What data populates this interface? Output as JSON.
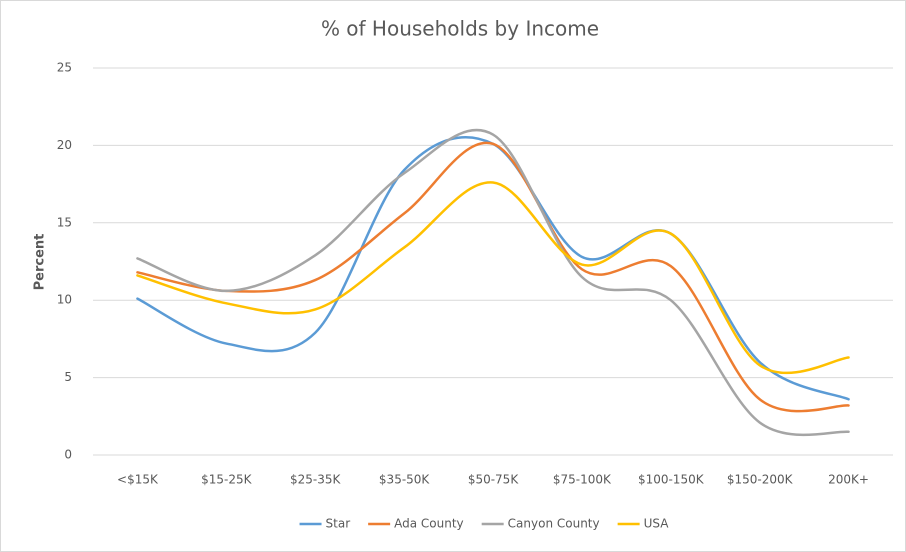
{
  "chart_data": {
    "type": "line",
    "title": "% of Households by Income",
    "y_label": "Percent",
    "categories": [
      "<$15K",
      "$15-25K",
      "$25-35K",
      "$35-50K",
      "$50-75K",
      "$75-100K",
      "$100-150K",
      "$150-200K",
      "200K+"
    ],
    "series": [
      {
        "name": "Star",
        "color": "#5b9bd5",
        "values": [
          10.1,
          7.2,
          7.9,
          18.4,
          20.1,
          12.8,
          14.3,
          6.0,
          3.6
        ]
      },
      {
        "name": "Ada County",
        "color": "#ed7d31",
        "values": [
          11.8,
          10.6,
          11.3,
          15.6,
          20.1,
          12.0,
          12.2,
          3.6,
          3.2
        ]
      },
      {
        "name": "Canyon County",
        "color": "#a5a5a5",
        "values": [
          12.7,
          10.6,
          12.9,
          18.2,
          20.7,
          11.5,
          10.0,
          2.1,
          1.5
        ]
      },
      {
        "name": "USA",
        "color": "#ffc000",
        "values": [
          11.6,
          9.8,
          9.4,
          13.4,
          17.6,
          12.3,
          14.3,
          5.8,
          6.3
        ]
      }
    ],
    "ylim": [
      0,
      25
    ],
    "yticks": [
      0,
      5,
      10,
      15,
      20,
      25
    ],
    "grid": true,
    "legend": "bottom"
  }
}
